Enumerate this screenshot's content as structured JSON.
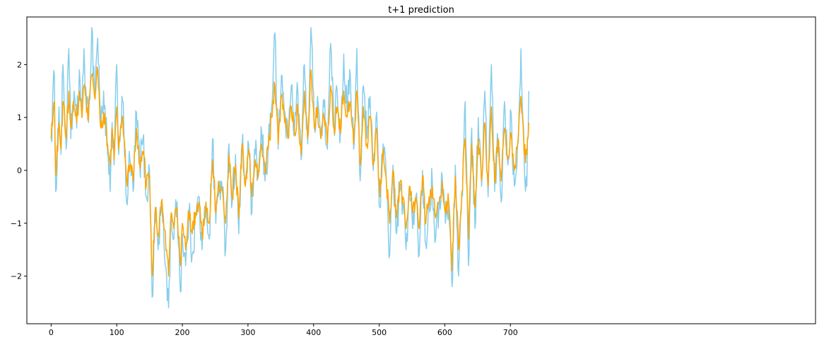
{
  "chart_data": {
    "type": "line",
    "title": "t+1 prediction",
    "xlabel": "",
    "ylabel": "",
    "xlim": [
      -37,
      1165
    ],
    "ylim": [
      -2.9,
      2.9
    ],
    "xticks": [
      0,
      100,
      200,
      300,
      400,
      500,
      600,
      700
    ],
    "yticks": [
      -2,
      -1,
      0,
      1,
      2
    ],
    "grid": false,
    "legend": "none",
    "series": [
      {
        "color": "#87CEEB",
        "anchors_x": [
          0,
          5,
          7,
          12,
          15,
          18,
          23,
          27,
          30,
          35,
          39,
          43,
          47,
          50,
          54,
          57,
          62,
          66,
          71,
          76,
          80,
          86,
          90,
          93,
          96,
          100,
          103,
          108,
          111,
          115,
          120,
          125,
          130,
          135,
          140,
          145,
          150,
          154,
          159,
          163,
          168,
          172,
          176,
          179,
          183,
          187,
          192,
          197,
          200,
          205,
          210,
          215,
          220,
          225,
          230,
          236,
          241,
          246,
          251,
          256,
          261,
          266,
          271,
          276,
          281,
          286,
          291,
          296,
          301,
          306,
          311,
          316,
          321,
          326,
          331,
          336,
          341,
          346,
          351,
          356,
          361,
          366,
          371,
          376,
          381,
          386,
          391,
          396,
          401,
          406,
          411,
          416,
          421,
          426,
          431,
          436,
          441,
          446,
          451,
          456,
          461,
          466,
          471,
          476,
          481,
          486,
          491,
          496,
          501,
          506,
          511,
          516,
          521,
          526,
          531,
          536,
          541,
          546,
          551,
          556,
          561,
          566,
          571,
          576,
          581,
          586,
          591,
          596,
          601,
          606,
          611,
          616,
          621,
          626,
          631,
          636,
          641,
          646,
          651,
          656,
          661,
          666,
          671,
          676,
          681,
          686,
          691,
          696,
          701,
          706,
          711,
          716,
          721,
          725,
          728
        ],
        "anchors_y": [
          0.6,
          1.8,
          -0.4,
          1.2,
          0.3,
          2.0,
          0.4,
          2.3,
          0.6,
          1.5,
          0.8,
          1.9,
          1.0,
          2.3,
          1.2,
          0.9,
          2.7,
          1.5,
          2.5,
          0.8,
          1.5,
          0.3,
          -0.4,
          0.9,
          0.1,
          2.0,
          0.3,
          1.4,
          0.7,
          -0.6,
          0.2,
          -0.4,
          1.1,
          0.1,
          0.6,
          -0.5,
          0.0,
          -2.4,
          -0.7,
          -1.5,
          -0.6,
          -1.4,
          -2.0,
          -2.6,
          -0.8,
          -1.3,
          -0.6,
          -2.3,
          -1.2,
          -1.8,
          -0.8,
          -1.6,
          -0.9,
          -0.5,
          -1.5,
          -0.6,
          -1.3,
          0.6,
          -1.0,
          -0.2,
          -0.4,
          -1.5,
          0.5,
          -0.6,
          0.3,
          -1.2,
          0.5,
          -0.3,
          0.5,
          -0.8,
          0.3,
          -0.1,
          0.7,
          -0.2,
          0.5,
          1.2,
          2.6,
          0.4,
          1.8,
          1.1,
          0.6,
          1.6,
          0.8,
          1.5,
          0.2,
          2.0,
          0.5,
          2.7,
          0.9,
          1.4,
          0.6,
          1.2,
          0.4,
          2.4,
          0.8,
          1.5,
          0.7,
          2.2,
          1.1,
          1.8,
          0.4,
          2.3,
          -0.2,
          1.6,
          0.6,
          1.4,
          0.0,
          1.1,
          -0.7,
          0.5,
          -0.3,
          -1.6,
          0.1,
          -1.2,
          -0.4,
          -0.6,
          -1.5,
          -0.3,
          -1.1,
          -0.5,
          -1.6,
          0.0,
          -1.4,
          -0.6,
          -0.2,
          -1.3,
          -0.7,
          -0.1,
          -1.0,
          -0.6,
          -2.2,
          0.1,
          -2.0,
          -0.5,
          1.3,
          -1.8,
          0.8,
          -1.1,
          1.0,
          -0.3,
          1.5,
          -0.5,
          2.0,
          -0.4,
          0.6,
          -0.6,
          1.3,
          0.1,
          1.1,
          -0.3,
          0.5,
          2.3,
          0.2,
          -0.3,
          1.5,
          0.7
        ],
        "noise": 0.35
      },
      {
        "color": "#FFA500",
        "anchors_x": [
          0,
          5,
          7,
          12,
          15,
          18,
          23,
          27,
          30,
          35,
          39,
          43,
          47,
          50,
          54,
          57,
          62,
          66,
          71,
          76,
          80,
          86,
          90,
          93,
          96,
          100,
          103,
          108,
          111,
          115,
          120,
          125,
          130,
          135,
          140,
          145,
          150,
          154,
          159,
          163,
          168,
          172,
          176,
          179,
          183,
          187,
          192,
          197,
          200,
          205,
          210,
          215,
          220,
          225,
          230,
          236,
          241,
          246,
          251,
          256,
          261,
          266,
          271,
          276,
          281,
          286,
          291,
          296,
          301,
          306,
          311,
          316,
          321,
          326,
          331,
          336,
          341,
          346,
          351,
          356,
          361,
          366,
          371,
          376,
          381,
          386,
          391,
          396,
          401,
          406,
          411,
          416,
          421,
          426,
          431,
          436,
          441,
          446,
          451,
          456,
          461,
          466,
          471,
          476,
          481,
          486,
          491,
          496,
          501,
          506,
          511,
          516,
          521,
          526,
          531,
          536,
          541,
          546,
          551,
          556,
          561,
          566,
          571,
          576,
          581,
          586,
          591,
          596,
          601,
          606,
          611,
          616,
          621,
          626,
          631,
          636,
          641,
          646,
          651,
          656,
          661,
          666,
          671,
          676,
          681,
          686,
          691,
          696,
          701,
          706,
          711,
          716,
          721,
          725,
          728
        ],
        "anchors_y": [
          0.6,
          1.3,
          -0.1,
          0.9,
          0.4,
          1.3,
          0.6,
          1.5,
          0.8,
          1.2,
          0.9,
          1.5,
          1.0,
          1.6,
          1.1,
          1.0,
          1.8,
          1.4,
          1.9,
          0.8,
          1.1,
          0.5,
          0.1,
          0.8,
          0.2,
          1.2,
          0.4,
          1.0,
          0.6,
          -0.2,
          0.1,
          -0.2,
          0.8,
          0.1,
          0.3,
          -0.3,
          -0.1,
          -2.0,
          -0.7,
          -1.2,
          -0.6,
          -1.1,
          -1.5,
          -2.0,
          -0.8,
          -1.1,
          -0.7,
          -1.8,
          -1.0,
          -1.5,
          -0.8,
          -1.2,
          -0.8,
          -0.6,
          -1.2,
          -0.6,
          -1.0,
          0.2,
          -0.8,
          -0.3,
          -0.4,
          -1.0,
          0.3,
          -0.5,
          0.1,
          -0.9,
          0.5,
          -0.3,
          0.4,
          -0.5,
          0.2,
          0.0,
          0.5,
          0.0,
          0.4,
          1.0,
          1.6,
          0.5,
          1.4,
          0.9,
          0.6,
          1.2,
          0.7,
          1.2,
          0.3,
          1.5,
          0.6,
          1.9,
          0.8,
          1.2,
          0.6,
          1.0,
          0.5,
          1.6,
          0.8,
          1.2,
          0.7,
          1.5,
          1.0,
          1.3,
          0.5,
          1.5,
          0.1,
          1.2,
          0.5,
          1.0,
          0.1,
          0.8,
          -0.5,
          0.4,
          -0.2,
          -1.0,
          0.0,
          -0.9,
          -0.3,
          -0.5,
          -1.1,
          -0.3,
          -0.8,
          -0.5,
          -1.1,
          -0.1,
          -1.0,
          -0.5,
          -0.3,
          -0.9,
          -0.6,
          -0.2,
          -0.8,
          -0.6,
          -1.9,
          -0.1,
          -1.5,
          -0.4,
          0.6,
          -1.3,
          0.5,
          -0.7,
          0.6,
          -0.2,
          0.9,
          -0.3,
          1.2,
          -0.2,
          0.6,
          -0.2,
          0.8,
          0.2,
          0.7,
          0.0,
          0.5,
          1.4,
          0.3,
          0.3,
          0.9,
          0.7
        ],
        "noise": 0.2
      }
    ]
  }
}
